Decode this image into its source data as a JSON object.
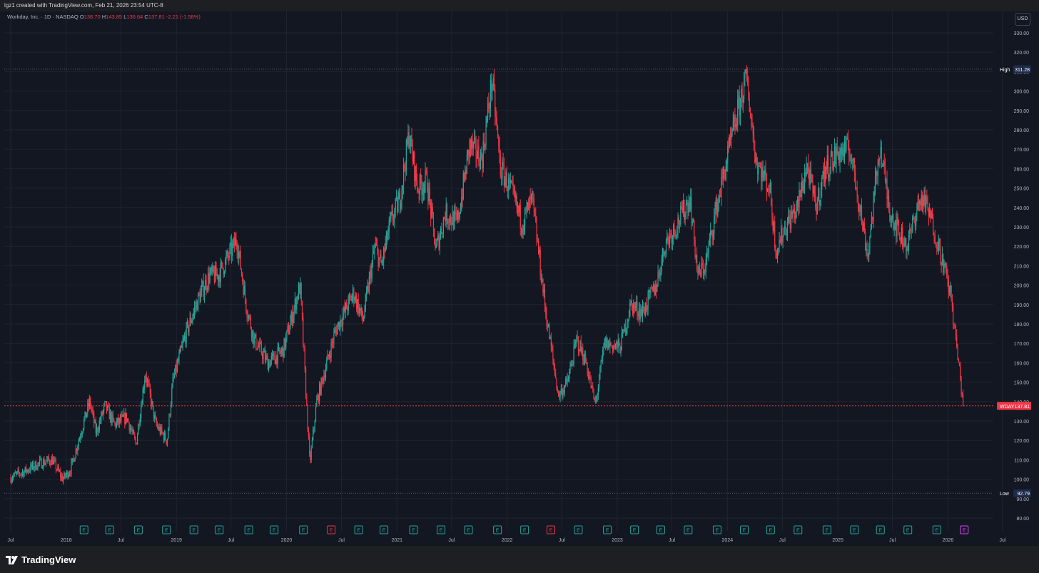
{
  "header": {
    "credit": "lgz1 created with TradingView.com, Feb 21, 2026 23:54 UTC-8"
  },
  "legend": {
    "symbol_line": "Workday, Inc. · 1D · NASDAQ",
    "o_label": "O",
    "o_value": "138.70",
    "h_label": "H",
    "h_value": "143.85",
    "l_label": "L",
    "l_value": "136.64",
    "c_label": "C",
    "c_value": "137.81",
    "change": "-2.21 (-1.58%)"
  },
  "currency_button": "USD",
  "footer": {
    "brand": "TradingView"
  },
  "colors": {
    "background": "#131722",
    "up": "#26a69a",
    "down": "#f23645",
    "grid": "#1f2430",
    "axis_text": "#b2b5be",
    "earnings_badge": "#26a69a",
    "earnings_miss": "#f23645",
    "earnings_upcoming": "#e040fb"
  },
  "chart_data": {
    "type": "candlestick",
    "symbol": "WDAY",
    "timeframe": "1D",
    "exchange": "NASDAQ",
    "y_axis": {
      "min": 80,
      "max": 330,
      "step": 10,
      "ticks": [
        "330.00",
        "320.00",
        "310.00",
        "300.00",
        "290.00",
        "280.00",
        "270.00",
        "260.00",
        "250.00",
        "240.00",
        "230.00",
        "220.00",
        "210.00",
        "200.00",
        "190.00",
        "180.00",
        "170.00",
        "160.00",
        "150.00",
        "140.00",
        "130.00",
        "120.00",
        "110.00",
        "100.00",
        "90.00",
        "80.00"
      ]
    },
    "x_axis": {
      "range": [
        "2017-07-01",
        "2026-07-01"
      ],
      "ticks": [
        {
          "date": "2017-07-01",
          "label": "Jul"
        },
        {
          "date": "2018-01-01",
          "label": "2018"
        },
        {
          "date": "2018-07-01",
          "label": "Jul"
        },
        {
          "date": "2019-01-01",
          "label": "2019"
        },
        {
          "date": "2019-07-01",
          "label": "Jul"
        },
        {
          "date": "2020-01-01",
          "label": "2020"
        },
        {
          "date": "2020-07-01",
          "label": "Jul"
        },
        {
          "date": "2021-01-01",
          "label": "2021"
        },
        {
          "date": "2021-07-01",
          "label": "Jul"
        },
        {
          "date": "2022-01-01",
          "label": "2022"
        },
        {
          "date": "2022-07-01",
          "label": "Jul"
        },
        {
          "date": "2023-01-01",
          "label": "2023"
        },
        {
          "date": "2023-07-01",
          "label": "Jul"
        },
        {
          "date": "2024-01-01",
          "label": "2024"
        },
        {
          "date": "2024-07-01",
          "label": "Jul"
        },
        {
          "date": "2025-01-01",
          "label": "2025"
        },
        {
          "date": "2025-07-01",
          "label": "Jul"
        },
        {
          "date": "2026-01-01",
          "label": "2026"
        },
        {
          "date": "2026-07-01",
          "label": "Jul"
        }
      ]
    },
    "reference_lines": [
      {
        "name": "High",
        "label": "High",
        "value_label": "311.28",
        "value": 311.28
      },
      {
        "name": "WDAY",
        "label": "WDAY",
        "value_label": "137.81",
        "value": 137.81
      },
      {
        "name": "Low",
        "label": "Low",
        "value_label": "92.79",
        "value": 92.79
      }
    ],
    "earnings_markers": [
      {
        "date": "2018-03-01",
        "label": "E",
        "result": "beat"
      },
      {
        "date": "2018-05-25",
        "label": "E",
        "result": "beat"
      },
      {
        "date": "2018-08-28",
        "label": "E",
        "result": "beat"
      },
      {
        "date": "2018-11-29",
        "label": "E",
        "result": "beat"
      },
      {
        "date": "2019-02-28",
        "label": "E",
        "result": "beat"
      },
      {
        "date": "2019-05-23",
        "label": "E",
        "result": "beat"
      },
      {
        "date": "2019-08-29",
        "label": "E",
        "result": "beat"
      },
      {
        "date": "2019-11-21",
        "label": "E",
        "result": "beat"
      },
      {
        "date": "2020-02-26",
        "label": "E",
        "result": "beat"
      },
      {
        "date": "2020-05-28",
        "label": "E",
        "result": "miss"
      },
      {
        "date": "2020-08-27",
        "label": "E",
        "result": "beat"
      },
      {
        "date": "2020-11-19",
        "label": "E",
        "result": "beat"
      },
      {
        "date": "2021-02-25",
        "label": "E",
        "result": "beat"
      },
      {
        "date": "2021-05-27",
        "label": "E",
        "result": "beat"
      },
      {
        "date": "2021-08-26",
        "label": "E",
        "result": "beat"
      },
      {
        "date": "2021-11-30",
        "label": "E",
        "result": "beat"
      },
      {
        "date": "2022-02-28",
        "label": "E",
        "result": "beat"
      },
      {
        "date": "2022-05-26",
        "label": "E",
        "result": "miss"
      },
      {
        "date": "2022-08-25",
        "label": "E",
        "result": "beat"
      },
      {
        "date": "2022-11-29",
        "label": "E",
        "result": "beat"
      },
      {
        "date": "2023-02-27",
        "label": "E",
        "result": "beat"
      },
      {
        "date": "2023-05-25",
        "label": "E",
        "result": "beat"
      },
      {
        "date": "2023-08-24",
        "label": "E",
        "result": "beat"
      },
      {
        "date": "2023-11-28",
        "label": "E",
        "result": "beat"
      },
      {
        "date": "2024-02-26",
        "label": "E",
        "result": "beat"
      },
      {
        "date": "2024-05-23",
        "label": "E",
        "result": "beat"
      },
      {
        "date": "2024-08-22",
        "label": "E",
        "result": "beat"
      },
      {
        "date": "2024-11-26",
        "label": "E",
        "result": "beat"
      },
      {
        "date": "2025-02-25",
        "label": "E",
        "result": "beat"
      },
      {
        "date": "2025-05-22",
        "label": "E",
        "result": "beat"
      },
      {
        "date": "2025-08-21",
        "label": "E",
        "result": "beat"
      },
      {
        "date": "2025-11-25",
        "label": "E",
        "result": "beat"
      },
      {
        "date": "2026-02-24",
        "label": "E",
        "result": "upcoming"
      }
    ],
    "price_path": [
      [
        "2017-07-01",
        101
      ],
      [
        "2017-08-15",
        104
      ],
      [
        "2017-10-01",
        108
      ],
      [
        "2017-11-15",
        110
      ],
      [
        "2017-12-20",
        100
      ],
      [
        "2018-01-15",
        105
      ],
      [
        "2018-03-01",
        130
      ],
      [
        "2018-03-20",
        140
      ],
      [
        "2018-04-10",
        124
      ],
      [
        "2018-05-10",
        138
      ],
      [
        "2018-06-10",
        128
      ],
      [
        "2018-07-20",
        132
      ],
      [
        "2018-08-20",
        118
      ],
      [
        "2018-09-20",
        155
      ],
      [
        "2018-10-25",
        128
      ],
      [
        "2018-12-01",
        120
      ],
      [
        "2018-12-20",
        150
      ],
      [
        "2019-02-01",
        175
      ],
      [
        "2019-03-15",
        193
      ],
      [
        "2019-04-20",
        205
      ],
      [
        "2019-05-20",
        205
      ],
      [
        "2019-07-10",
        220
      ],
      [
        "2019-07-20",
        224
      ],
      [
        "2019-08-20",
        190
      ],
      [
        "2019-09-15",
        172
      ],
      [
        "2019-11-01",
        160
      ],
      [
        "2019-12-20",
        166
      ],
      [
        "2020-02-15",
        200
      ],
      [
        "2020-03-18",
        108
      ],
      [
        "2020-04-10",
        140
      ],
      [
        "2020-06-10",
        176
      ],
      [
        "2020-08-10",
        196
      ],
      [
        "2020-09-10",
        182
      ],
      [
        "2020-10-20",
        220
      ],
      [
        "2020-11-10",
        210
      ],
      [
        "2020-12-10",
        232
      ],
      [
        "2021-01-10",
        244
      ],
      [
        "2021-02-10",
        278
      ],
      [
        "2021-03-10",
        250
      ],
      [
        "2021-04-10",
        254
      ],
      [
        "2021-05-10",
        218
      ],
      [
        "2021-06-10",
        237
      ],
      [
        "2021-07-20",
        232
      ],
      [
        "2021-08-30",
        272
      ],
      [
        "2021-10-10",
        265
      ],
      [
        "2021-11-12",
        306
      ],
      [
        "2021-12-10",
        260
      ],
      [
        "2022-01-10",
        250
      ],
      [
        "2022-02-20",
        232
      ],
      [
        "2022-03-25",
        244
      ],
      [
        "2022-05-10",
        185
      ],
      [
        "2022-06-20",
        143
      ],
      [
        "2022-07-20",
        150
      ],
      [
        "2022-08-20",
        172
      ],
      [
        "2022-09-20",
        160
      ],
      [
        "2022-10-20",
        138
      ],
      [
        "2022-11-20",
        170
      ],
      [
        "2023-01-10",
        168
      ],
      [
        "2023-02-15",
        190
      ],
      [
        "2023-03-25",
        186
      ],
      [
        "2023-05-10",
        200
      ],
      [
        "2023-06-10",
        222
      ],
      [
        "2023-07-20",
        232
      ],
      [
        "2023-08-30",
        245
      ],
      [
        "2023-09-25",
        205
      ],
      [
        "2023-10-20",
        210
      ],
      [
        "2023-11-20",
        236
      ],
      [
        "2024-01-10",
        272
      ],
      [
        "2024-02-20",
        300
      ],
      [
        "2024-03-05",
        306
      ],
      [
        "2024-04-05",
        264
      ],
      [
        "2024-05-20",
        250
      ],
      [
        "2024-06-10",
        218
      ],
      [
        "2024-07-10",
        230
      ],
      [
        "2024-08-20",
        240
      ],
      [
        "2024-09-20",
        262
      ],
      [
        "2024-10-20",
        240
      ],
      [
        "2024-11-20",
        260
      ],
      [
        "2025-01-01",
        268
      ],
      [
        "2025-02-10",
        270
      ],
      [
        "2025-03-10",
        245
      ],
      [
        "2025-04-10",
        215
      ],
      [
        "2025-05-20",
        272
      ],
      [
        "2025-06-20",
        240
      ],
      [
        "2025-07-20",
        228
      ],
      [
        "2025-08-20",
        220
      ],
      [
        "2025-09-20",
        240
      ],
      [
        "2025-10-10",
        245
      ],
      [
        "2025-11-10",
        232
      ],
      [
        "2025-12-10",
        215
      ],
      [
        "2026-01-10",
        195
      ],
      [
        "2026-02-21",
        137.81
      ]
    ]
  }
}
